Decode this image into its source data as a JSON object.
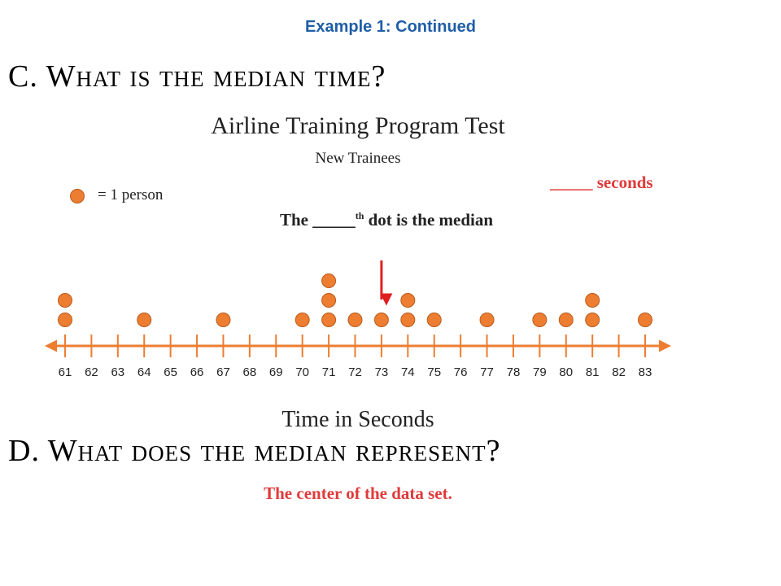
{
  "header": {
    "example_label": "Example 1: Continued",
    "question_c": "C. What is the median time?",
    "question_d": "D.  What does the median represent?"
  },
  "key": {
    "label": "= 1 person"
  },
  "annotations": {
    "answer_seconds": "_____ seconds",
    "median_note_pre": "The _____",
    "median_note_sup": "th",
    "median_note_post": " dot is the median",
    "answer_d": "The center of the data set."
  },
  "colors": {
    "dot": "#ed7d31",
    "axis": "#ed7d31",
    "arrow": "#e02020",
    "heading_blue": "#1f5ea8",
    "answer_red": "#e03a3a"
  },
  "chart_data": {
    "type": "scatter",
    "title": "Airline Training Program Test",
    "subtitle": "New Trainees",
    "xlabel": "Time in Seconds",
    "xlim": [
      61,
      83
    ],
    "ticks": [
      61,
      62,
      63,
      64,
      65,
      66,
      67,
      68,
      69,
      70,
      71,
      72,
      73,
      74,
      75,
      76,
      77,
      78,
      79,
      80,
      81,
      82,
      83
    ],
    "counts": [
      {
        "x": 61,
        "count": 2
      },
      {
        "x": 64,
        "count": 1
      },
      {
        "x": 67,
        "count": 1
      },
      {
        "x": 70,
        "count": 1
      },
      {
        "x": 71,
        "count": 3
      },
      {
        "x": 72,
        "count": 1
      },
      {
        "x": 73,
        "count": 1
      },
      {
        "x": 74,
        "count": 2
      },
      {
        "x": 75,
        "count": 1
      },
      {
        "x": 77,
        "count": 1
      },
      {
        "x": 79,
        "count": 1
      },
      {
        "x": 80,
        "count": 1
      },
      {
        "x": 81,
        "count": 2
      },
      {
        "x": 83,
        "count": 1
      }
    ],
    "arrow_at": 73
  }
}
